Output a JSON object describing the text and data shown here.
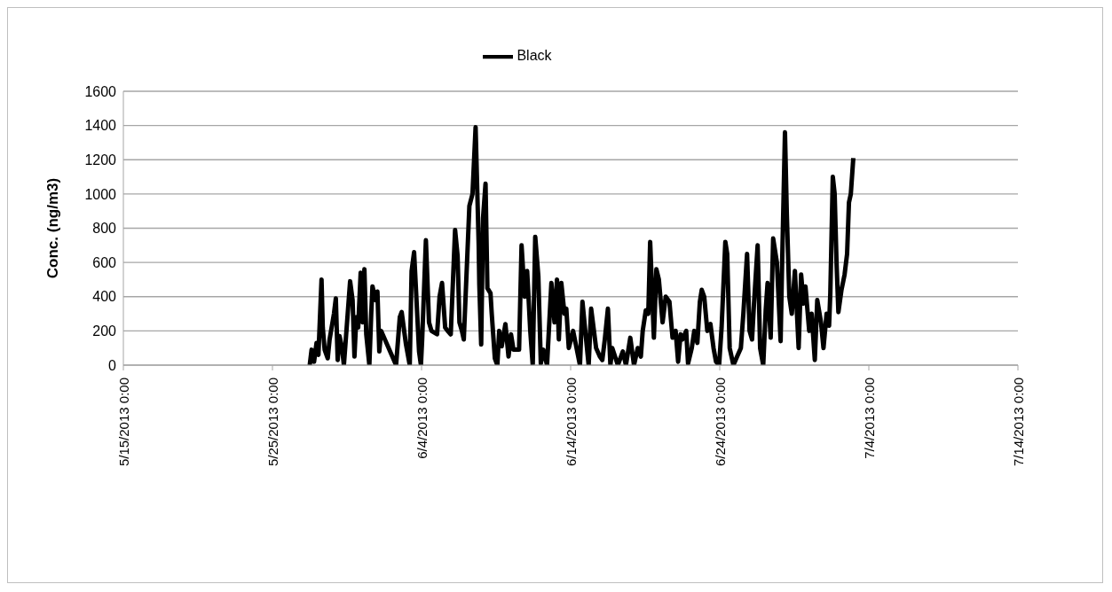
{
  "chart_data": {
    "type": "line",
    "ylabel": "Conc. (ng/m3)",
    "legend": "top",
    "grid": "y",
    "marker": "none",
    "line_style": "solid",
    "xlim": [
      "2013-05-15",
      "2013-07-14"
    ],
    "xticks": [
      {
        "value": "2013-05-15",
        "label": "5/15/2013 0:00"
      },
      {
        "value": "2013-05-25",
        "label": "5/25/2013 0:00"
      },
      {
        "value": "2013-06-04",
        "label": "6/4/2013 0:00"
      },
      {
        "value": "2013-06-14",
        "label": "6/14/2013 0:00"
      },
      {
        "value": "2013-06-24",
        "label": "6/24/2013 0:00"
      },
      {
        "value": "2013-07-04",
        "label": "7/4/2013 0:00"
      },
      {
        "value": "2013-07-14",
        "label": "7/14/2013 0:00"
      }
    ],
    "ylim": [
      0,
      1600
    ],
    "yticks": [
      0,
      200,
      400,
      600,
      800,
      1000,
      1200,
      1400,
      1600
    ],
    "x": [
      "2013-05-27T12:00",
      "2013-05-27T15:00",
      "2013-05-27T19:00",
      "2013-05-27T23:00",
      "2013-05-28T02:00",
      "2013-05-28T07:00",
      "2013-05-28T09:00",
      "2013-05-28T12:00",
      "2013-05-28T17:00",
      "2013-05-28T20:00",
      "2013-05-29T03:00",
      "2013-05-29T06:00",
      "2013-05-29T09:00",
      "2013-05-29T12:00",
      "2013-05-29T16:00",
      "2013-05-29T19:00",
      "2013-05-30T05:00",
      "2013-05-30T09:00",
      "2013-05-30T12:00",
      "2013-05-30T15:00",
      "2013-05-30T18:00",
      "2013-05-30T22:00",
      "2013-05-31T01:00",
      "2013-05-31T04:00",
      "2013-05-31T07:00",
      "2013-05-31T12:00",
      "2013-05-31T15:00",
      "2013-05-31T17:00",
      "2013-05-31T22:00",
      "2013-06-01T01:00",
      "2013-06-01T04:00",
      "2013-06-01T07:00",
      "2013-06-02T07:00",
      "2013-06-02T13:00",
      "2013-06-02T16:00",
      "2013-06-02T20:00",
      "2013-06-02T23:00",
      "2013-06-03T05:00",
      "2013-06-03T08:00",
      "2013-06-03T12:00",
      "2013-06-03T17:00",
      "2013-06-03T20:00",
      "2013-06-03T23:00",
      "2013-06-04T01:00",
      "2013-06-04T07:00",
      "2013-06-04T12:00",
      "2013-06-04T16:00",
      "2013-06-05T01:00",
      "2013-06-05T05:00",
      "2013-06-05T09:00",
      "2013-06-05T14:00",
      "2013-06-05T18:00",
      "2013-06-05T23:00",
      "2013-06-06T06:00",
      "2013-06-06T10:00",
      "2013-06-06T13:00",
      "2013-06-06T17:00",
      "2013-06-06T20:00",
      "2013-06-07T05:00",
      "2013-06-07T10:00",
      "2013-06-07T15:00",
      "2013-06-07T20:00",
      "2013-06-07T21:00",
      "2013-06-08T00:00",
      "2013-06-08T03:00",
      "2013-06-08T07:00",
      "2013-06-08T10:00",
      "2013-06-08T15:00",
      "2013-06-08T17:00",
      "2013-06-08T22:00",
      "2013-06-09T02:00",
      "2013-06-09T05:00",
      "2013-06-09T09:00",
      "2013-06-09T15:00",
      "2013-06-09T20:00",
      "2013-06-10T00:00",
      "2013-06-10T04:00",
      "2013-06-10T13:00",
      "2013-06-10T17:00",
      "2013-06-10T22:00",
      "2013-06-11T02:00",
      "2013-06-11T07:00",
      "2013-06-11T11:00",
      "2013-06-11T15:00",
      "2013-06-11T20:00",
      "2013-06-12T00:00",
      "2013-06-12T04:00",
      "2013-06-12T10:00",
      "2013-06-12T17:00",
      "2013-06-12T22:00",
      "2013-06-13T02:00",
      "2013-06-13T05:00",
      "2013-06-13T09:00",
      "2013-06-13T14:00",
      "2013-06-13T17:00",
      "2013-06-13T21:00",
      "2013-06-14T04:00",
      "2013-06-14T15:00",
      "2013-06-14T19:00",
      "2013-06-14T23:00",
      "2013-06-15T05:00",
      "2013-06-15T09:00",
      "2013-06-15T17:00",
      "2013-06-15T23:00",
      "2013-06-16T03:00",
      "2013-06-16T07:00",
      "2013-06-16T12:00",
      "2013-06-16T16:00",
      "2013-06-16T19:00",
      "2013-06-17T04:00",
      "2013-06-17T12:00",
      "2013-06-17T17:00",
      "2013-06-18T00:00",
      "2013-06-18T06:00",
      "2013-06-18T12:00",
      "2013-06-18T17:00",
      "2013-06-18T20:00",
      "2013-06-19T01:00",
      "2013-06-19T05:00",
      "2013-06-19T08:00",
      "2013-06-19T14:00",
      "2013-06-19T18:00",
      "2013-06-19T22:00",
      "2013-06-20T04:00",
      "2013-06-20T09:00",
      "2013-06-20T15:00",
      "2013-06-20T20:00",
      "2013-06-21T01:00",
      "2013-06-21T05:00",
      "2013-06-21T09:00",
      "2013-06-21T12:00",
      "2013-06-21T18:00",
      "2013-06-21T21:00",
      "2013-06-22T03:00",
      "2013-06-22T07:00",
      "2013-06-22T12:00",
      "2013-06-22T16:00",
      "2013-06-22T19:00",
      "2013-06-22T23:00",
      "2013-06-23T04:00",
      "2013-06-23T09:00",
      "2013-06-23T14:00",
      "2013-06-23T18:00",
      "2013-06-23T23:00",
      "2013-06-24T03:00",
      "2013-06-24T09:00",
      "2013-06-24T12:00",
      "2013-06-24T16:00",
      "2013-06-24T22:00",
      "2013-06-25T04:00",
      "2013-06-25T10:00",
      "2013-06-25T14:00",
      "2013-06-25T20:00",
      "2013-06-26T00:00",
      "2013-06-26T04:00",
      "2013-06-26T07:00",
      "2013-06-26T13:00",
      "2013-06-26T17:00",
      "2013-06-26T22:00",
      "2013-06-27T02:00",
      "2013-06-27T05:00",
      "2013-06-27T10:00",
      "2013-06-27T14:00",
      "2013-06-27T20:00",
      "2013-06-28T02:00",
      "2013-06-28T04:00",
      "2013-06-28T09:00",
      "2013-06-28T12:00",
      "2013-06-28T16:00",
      "2013-06-28T20:00",
      "2013-06-29T01:00",
      "2013-06-29T07:00",
      "2013-06-29T11:00",
      "2013-06-29T15:00",
      "2013-06-29T18:00",
      "2013-06-30T00:00",
      "2013-06-30T04:00",
      "2013-06-30T09:00",
      "2013-06-30T13:00",
      "2013-06-30T19:00",
      "2013-06-30T23:00",
      "2013-07-01T04:00",
      "2013-07-01T08:00",
      "2013-07-01T10:00",
      "2013-07-01T14:00",
      "2013-07-01T17:00",
      "2013-07-01T20:00",
      "2013-07-01T23:00",
      "2013-07-02T04:00",
      "2013-07-02T09:00",
      "2013-07-02T13:00",
      "2013-07-02T16:00",
      "2013-07-02T19:00",
      "2013-07-02T23:00"
    ],
    "series": [
      {
        "name": "Black",
        "color": "#000000",
        "values": [
          0,
          90,
          20,
          130,
          60,
          500,
          220,
          90,
          40,
          150,
          300,
          390,
          30,
          170,
          100,
          0,
          490,
          380,
          50,
          280,
          220,
          540,
          250,
          560,
          180,
          0,
          300,
          460,
          380,
          430,
          80,
          200,
          0,
          280,
          310,
          200,
          120,
          0,
          550,
          660,
          300,
          80,
          0,
          150,
          730,
          250,
          200,
          180,
          400,
          480,
          220,
          200,
          180,
          790,
          640,
          250,
          200,
          150,
          930,
          1000,
          1390,
          700,
          470,
          120,
          860,
          1060,
          450,
          420,
          300,
          40,
          0,
          200,
          110,
          240,
          50,
          180,
          90,
          90,
          700,
          400,
          550,
          200,
          0,
          750,
          520,
          10,
          90,
          0,
          480,
          250,
          500,
          150,
          480,
          300,
          330,
          100,
          200,
          0,
          370,
          220,
          0,
          330,
          100,
          50,
          30,
          150,
          330,
          0,
          100,
          0,
          80,
          0,
          160,
          0,
          100,
          50,
          200,
          320,
          300,
          720,
          160,
          560,
          500,
          250,
          400,
          370,
          160,
          200,
          20,
          180,
          150,
          200,
          10,
          100,
          200,
          130,
          370,
          440,
          400,
          200,
          240,
          100,
          20,
          0,
          220,
          720,
          650,
          100,
          0,
          50,
          100,
          300,
          650,
          200,
          150,
          350,
          700,
          100,
          0,
          320,
          480,
          160,
          740,
          600,
          140,
          520,
          1360,
          880,
          400,
          300,
          550,
          100,
          530,
          360,
          460,
          200,
          300,
          30,
          380,
          250,
          100,
          300,
          230,
          420,
          1100,
          1000,
          600,
          310,
          440,
          530,
          650,
          950,
          1000,
          1210
        ]
      }
    ]
  }
}
